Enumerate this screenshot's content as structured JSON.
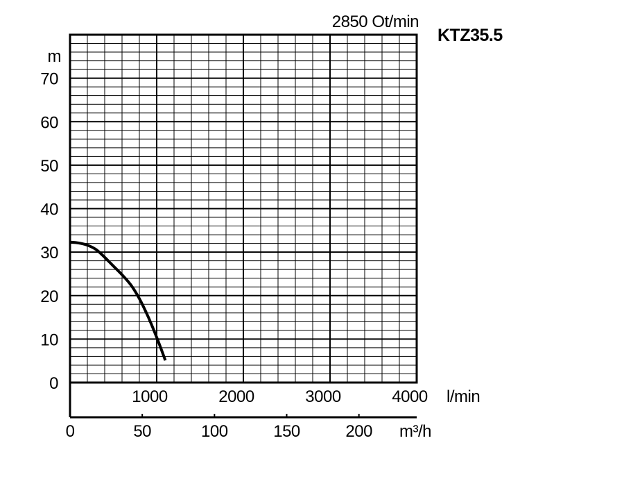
{
  "chart_data": {
    "type": "line",
    "title": "KTZ35.5",
    "subtitle": "2850 Ot/min",
    "ylabel": "m",
    "xlabel_primary_unit": "l/min",
    "xlabel_secondary_unit": "m³/h",
    "xlim": [
      0,
      4000
    ],
    "ylim": [
      0,
      80
    ],
    "secondary_xlim": [
      0,
      240
    ],
    "grid": true,
    "y_ticks": [
      "0",
      "10",
      "20",
      "30",
      "40",
      "50",
      "60",
      "70"
    ],
    "x_ticks_primary": [
      "1000",
      "2000",
      "3000",
      "4000"
    ],
    "x_ticks_secondary": [
      "0",
      "50",
      "100",
      "150",
      "200"
    ],
    "series": [
      {
        "x": [
          0,
          100,
          200,
          300,
          400,
          500,
          600,
          700,
          800,
          900,
          1000,
          1100
        ],
        "y": [
          32.3,
          32.1,
          31.6,
          30.6,
          28.8,
          26.8,
          24.8,
          22.5,
          19.3,
          15.2,
          10.4,
          5.1
        ]
      }
    ]
  },
  "colors": {
    "line": "#000000",
    "grid": "#000000",
    "background": "#ffffff"
  }
}
